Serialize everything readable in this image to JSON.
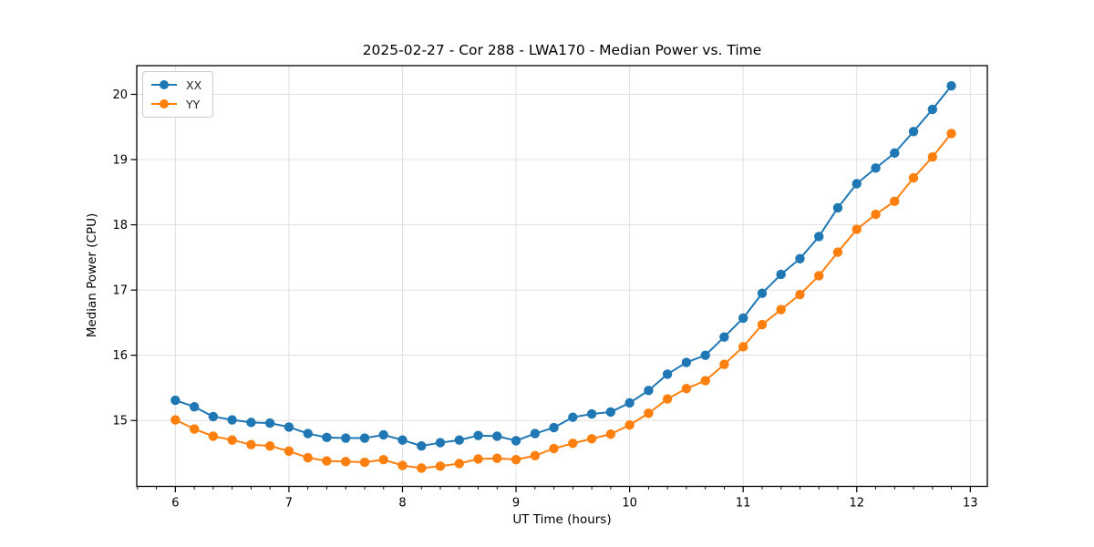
{
  "chart_data": {
    "type": "line",
    "title": "2025-02-27 - Cor 288 - LWA170 - Median Power vs. Time",
    "xlabel": "UT Time (hours)",
    "ylabel": "Median Power (CPU)",
    "x": [
      6.0,
      6.167,
      6.333,
      6.5,
      6.667,
      6.833,
      7.0,
      7.167,
      7.333,
      7.5,
      7.667,
      7.833,
      8.0,
      8.167,
      8.333,
      8.5,
      8.667,
      8.833,
      9.0,
      9.167,
      9.333,
      9.5,
      9.667,
      9.833,
      10.0,
      10.167,
      10.333,
      10.5,
      10.667,
      10.833,
      11.0,
      11.167,
      11.333,
      11.5,
      11.667,
      11.833,
      12.0,
      12.167,
      12.333,
      12.5,
      12.667,
      12.833
    ],
    "series": [
      {
        "name": "XX",
        "color": "#1f77b4",
        "marker": "circle",
        "values": [
          15.31,
          15.21,
          15.06,
          15.01,
          14.97,
          14.96,
          14.9,
          14.8,
          14.74,
          14.73,
          14.73,
          14.78,
          14.7,
          14.61,
          14.66,
          14.7,
          14.77,
          14.76,
          14.69,
          14.8,
          14.89,
          15.05,
          15.1,
          15.13,
          15.27,
          15.46,
          15.71,
          15.89,
          16.0,
          16.28,
          16.57,
          16.95,
          17.24,
          17.48,
          17.82,
          18.26,
          18.63,
          18.87,
          19.1,
          19.43,
          19.77,
          20.13
        ]
      },
      {
        "name": "YY",
        "color": "#ff7f0e",
        "marker": "circle",
        "values": [
          15.01,
          14.87,
          14.76,
          14.7,
          14.63,
          14.61,
          14.53,
          14.43,
          14.38,
          14.37,
          14.36,
          14.4,
          14.31,
          14.27,
          14.3,
          14.34,
          14.41,
          14.42,
          14.4,
          14.46,
          14.57,
          14.65,
          14.72,
          14.79,
          14.93,
          15.11,
          15.33,
          15.49,
          15.61,
          15.86,
          16.13,
          16.47,
          16.7,
          16.93,
          17.22,
          17.58,
          17.93,
          18.16,
          18.36,
          18.72,
          19.04,
          19.4
        ]
      }
    ],
    "xlim": [
      5.66,
      13.15
    ],
    "ylim": [
      13.99,
      20.44
    ],
    "xticks": [
      6,
      7,
      8,
      9,
      10,
      11,
      12,
      13
    ],
    "yticks": [
      15,
      16,
      17,
      18,
      19,
      20
    ],
    "x_minor_tick_step": 0.16667,
    "grid": true,
    "grid_color": "#e0e0e0",
    "axis_color": "#000000",
    "legend_position": "upper left"
  }
}
